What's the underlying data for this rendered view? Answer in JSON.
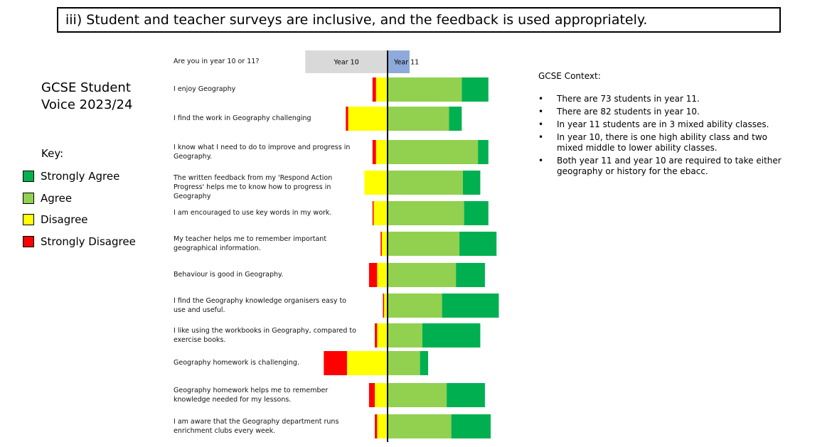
{
  "header": {
    "title": "iii)   Student and teacher surveys are inclusive, and the feedback is used appropriately."
  },
  "side_title": "GCSE Student Voice 2023/24",
  "key_title": "Key:",
  "context": {
    "title": "GCSE Context:",
    "bullets": [
      "There are 73 students in year 11.",
      "There are 82 students in year 10.",
      "In year 11 students are in 3 mixed ability classes.",
      "In year 10, there is one high ability class and two mixed middle to lower ability classes.",
      "Both year 11 and year 10 are required to take either geography or history for the ebacc."
    ]
  },
  "chart_data": {
    "type": "diverging_bar",
    "year_question": {
      "label": "Are you in year 10 or 11?",
      "categories": [
        "Year 10",
        "Year 11"
      ],
      "values": [
        71,
        19
      ],
      "colors": [
        "#d9d9d9",
        "#8eaadb"
      ]
    },
    "categories": [
      "I enjoy Geography",
      "I find the work in Geography challenging",
      "I know what I need to do to improve and progress in Geography.",
      "The written feedback from my 'Respond Action Progress' helps me to know how to progress in Geography",
      "I am encouraged to use key words in my work.",
      "My teacher helps me to remember important geographical information.",
      "Behaviour is good in Geography.",
      "I find the Geography knowledge organisers easy to use and useful.",
      "I like using the workbooks in Geography, compared to exercise books.",
      "Geography homework is challenging.",
      "Geography homework helps me to remember knowledge needed for my lessons.",
      "I am aware that the Geography department runs enrichment clubs every week."
    ],
    "series": [
      {
        "name": "Strongly Agree",
        "color": "#00b050",
        "values": [
          23,
          11,
          9,
          15,
          21,
          32,
          25,
          49,
          50,
          7,
          33,
          34
        ]
      },
      {
        "name": "Agree",
        "color": "#92d050",
        "values": [
          64,
          53,
          78,
          65,
          66,
          62,
          59,
          47,
          30,
          28,
          51,
          55
        ]
      },
      {
        "name": "Disagree",
        "color": "#ffff00",
        "values": [
          10,
          34,
          10,
          20,
          12,
          5,
          9,
          3,
          9,
          35,
          11,
          9
        ]
      },
      {
        "name": "Strongly Disagree",
        "color": "#ff0000",
        "values": [
          3,
          2,
          3,
          0,
          1,
          1,
          7,
          1,
          2,
          20,
          5,
          2
        ]
      }
    ]
  }
}
